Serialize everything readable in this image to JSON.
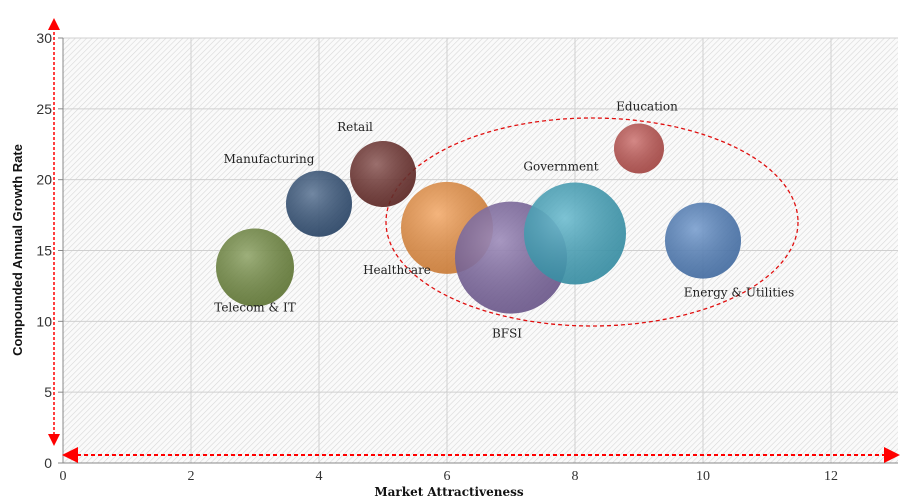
{
  "chart_data": {
    "type": "bubble",
    "title": "",
    "xlabel": "Market Attractiveness",
    "ylabel": "Compounded Annual Growth Rate",
    "xlim": [
      0,
      13
    ],
    "ylim": [
      0,
      30
    ],
    "xticks": [
      0,
      2,
      4,
      6,
      8,
      10,
      12
    ],
    "yticks": [
      0,
      5,
      10,
      15,
      20,
      25,
      30
    ],
    "grid": true,
    "series": [
      {
        "name": "Telecom & IT",
        "x": 3,
        "y": 13.8,
        "size": 39,
        "color": "#6f8a3c"
      },
      {
        "name": "Manufacturing",
        "x": 4,
        "y": 18.3,
        "size": 33,
        "color": "#2f4f77"
      },
      {
        "name": "Retail",
        "x": 5,
        "y": 20.4,
        "size": 33,
        "color": "#6b2b28"
      },
      {
        "name": "Healthcare",
        "x": 6,
        "y": 16.6,
        "size": 46,
        "color": "#f0913f"
      },
      {
        "name": "BFSI",
        "x": 7,
        "y": 14.5,
        "size": 56,
        "color": "#7d66a3"
      },
      {
        "name": "Government",
        "x": 8,
        "y": 16.2,
        "size": 51,
        "color": "#3fa6c0"
      },
      {
        "name": "Education",
        "x": 9,
        "y": 22.2,
        "size": 25,
        "color": "#c0504d"
      },
      {
        "name": "Energy & Utilities",
        "x": 10,
        "y": 15.7,
        "size": 38,
        "color": "#4f7fbf"
      }
    ]
  }
}
